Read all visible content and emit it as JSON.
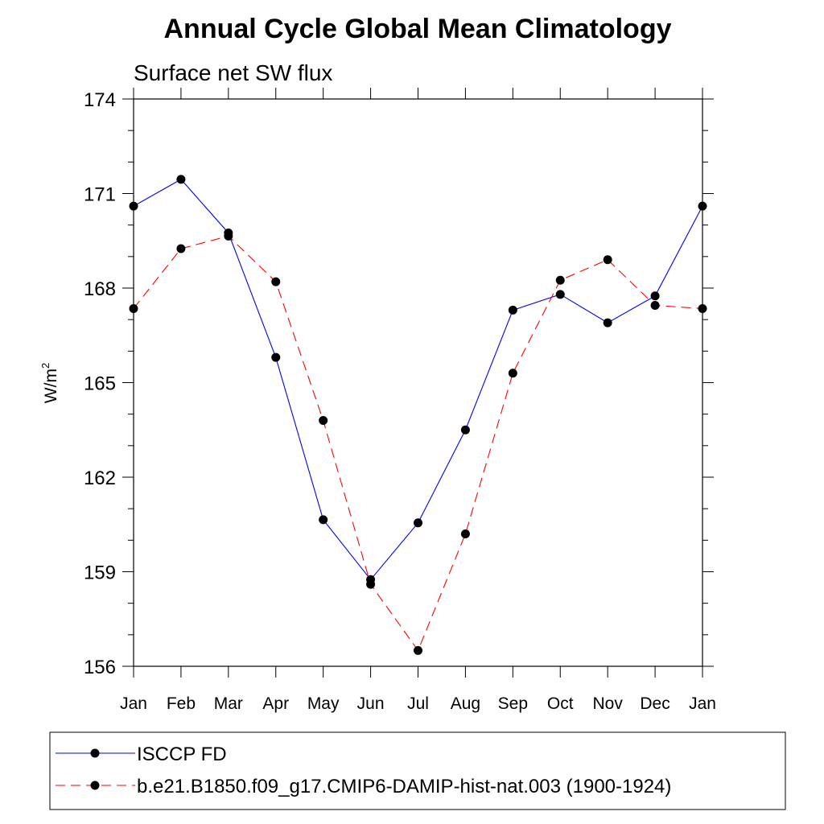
{
  "chart_data": {
    "type": "line",
    "title": "Annual Cycle Global Mean Climatology",
    "subtitle": "Surface net SW flux",
    "ylabel": "W/m",
    "ylabel_sup": "2",
    "xlabel": "",
    "categories": [
      "Jan",
      "Feb",
      "Mar",
      "Apr",
      "May",
      "Jun",
      "Jul",
      "Aug",
      "Sep",
      "Oct",
      "Nov",
      "Dec",
      "Jan"
    ],
    "ylim": [
      156,
      174
    ],
    "yticks": [
      "156",
      "159",
      "162",
      "165",
      "168",
      "171",
      "174"
    ],
    "grid": false,
    "legend_position": "bottom",
    "series": [
      {
        "name": "ISCCP FD",
        "color": "#0000ff",
        "dash": "solid",
        "marker": "filled-circle",
        "values": [
          170.6,
          171.45,
          169.75,
          165.8,
          160.65,
          158.75,
          160.55,
          163.5,
          167.3,
          167.8,
          166.9,
          167.75,
          170.6
        ]
      },
      {
        "name": "b.e21.B1850.f09_g17.CMIP6-DAMIP-hist-nat.003 (1900-1924)",
        "color": "#ff0000",
        "dash": "dashed",
        "marker": "filled-circle",
        "values": [
          167.35,
          169.25,
          169.65,
          168.2,
          163.8,
          158.6,
          156.5,
          160.2,
          165.3,
          168.25,
          168.9,
          167.45,
          167.35
        ]
      }
    ]
  }
}
